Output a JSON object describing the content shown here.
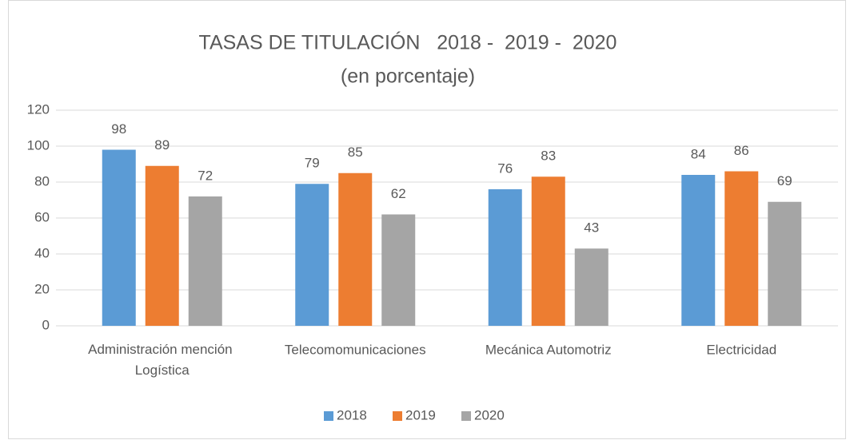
{
  "chart_data": {
    "type": "bar",
    "title": "TASAS DE TITULACIÓN   2018 -  2019 -  2020",
    "subtitle": "(en porcentaje)",
    "categories": [
      "Administración mención Logística",
      "Telecomomunicaciones",
      "Mecánica Automotriz",
      "Electricidad"
    ],
    "series": [
      {
        "name": "2018",
        "color": "#5b9bd5",
        "values": [
          98,
          79,
          76,
          84
        ]
      },
      {
        "name": "2019",
        "color": "#ed7d31",
        "values": [
          89,
          85,
          83,
          86
        ]
      },
      {
        "name": "2020",
        "color": "#a5a5a5",
        "values": [
          72,
          62,
          43,
          69
        ]
      }
    ],
    "ylim": [
      0,
      120
    ],
    "yticks": [
      0,
      20,
      40,
      60,
      80,
      100,
      120
    ],
    "grid": true,
    "legend": "bottom"
  }
}
